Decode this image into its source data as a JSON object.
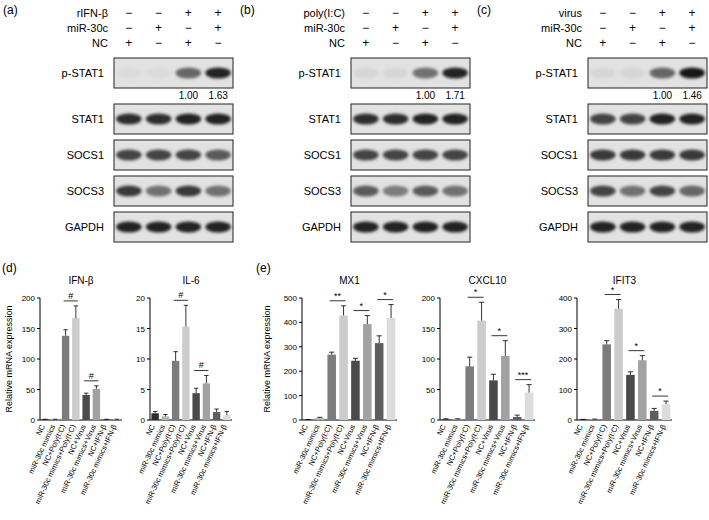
{
  "blots": [
    {
      "panel": "(a)",
      "conditions": [
        {
          "label": "rIFN-β",
          "signs": [
            "−",
            "−",
            "+",
            "+"
          ]
        },
        {
          "label": "miR-30c",
          "signs": [
            "−",
            "+",
            "−",
            "+"
          ]
        },
        {
          "label": "NC",
          "signs": [
            "+",
            "−",
            "+",
            "−"
          ]
        }
      ],
      "rows": [
        {
          "label": "p-STAT1",
          "intensity": [
            0.03,
            0.03,
            0.55,
            0.85
          ],
          "quantification": [
            null,
            null,
            "1.00",
            "1.63"
          ]
        },
        {
          "label": "STAT1",
          "intensity": [
            0.8,
            0.8,
            0.85,
            0.85
          ]
        },
        {
          "label": "SOCS1",
          "intensity": [
            0.7,
            0.7,
            0.7,
            0.6
          ]
        },
        {
          "label": "SOCS3",
          "intensity": [
            0.75,
            0.5,
            0.75,
            0.5
          ]
        },
        {
          "label": "GAPDH",
          "intensity": [
            0.85,
            0.85,
            0.85,
            0.85
          ]
        }
      ]
    },
    {
      "panel": "(b)",
      "conditions": [
        {
          "label": "poly(I:C)",
          "signs": [
            "−",
            "−",
            "+",
            "+"
          ]
        },
        {
          "label": "miR-30c",
          "signs": [
            "−",
            "+",
            "−",
            "+"
          ]
        },
        {
          "label": "NC",
          "signs": [
            "+",
            "−",
            "+",
            "−"
          ]
        }
      ],
      "rows": [
        {
          "label": "p-STAT1",
          "intensity": [
            0.05,
            0.05,
            0.5,
            0.85
          ],
          "quantification": [
            null,
            null,
            "1.00",
            "1.71"
          ]
        },
        {
          "label": "STAT1",
          "intensity": [
            0.8,
            0.8,
            0.85,
            0.85
          ]
        },
        {
          "label": "SOCS1",
          "intensity": [
            0.7,
            0.7,
            0.7,
            0.7
          ]
        },
        {
          "label": "SOCS3",
          "intensity": [
            0.6,
            0.45,
            0.6,
            0.5
          ]
        },
        {
          "label": "GAPDH",
          "intensity": [
            0.85,
            0.85,
            0.85,
            0.85
          ]
        }
      ]
    },
    {
      "panel": "(c)",
      "conditions": [
        {
          "label": "virus",
          "signs": [
            "−",
            "−",
            "+",
            "+"
          ]
        },
        {
          "label": "miR-30c",
          "signs": [
            "−",
            "+",
            "−",
            "+"
          ]
        },
        {
          "label": "NC",
          "signs": [
            "+",
            "−",
            "+",
            "−"
          ]
        }
      ],
      "rows": [
        {
          "label": "p-STAT1",
          "intensity": [
            0.05,
            0.05,
            0.55,
            0.9
          ],
          "quantification": [
            null,
            null,
            "1.00",
            "1.46"
          ]
        },
        {
          "label": "STAT1",
          "intensity": [
            0.7,
            0.7,
            0.85,
            0.85
          ]
        },
        {
          "label": "SOCS1",
          "intensity": [
            0.75,
            0.75,
            0.75,
            0.75
          ]
        },
        {
          "label": "SOCS3",
          "intensity": [
            0.7,
            0.5,
            0.7,
            0.55
          ]
        },
        {
          "label": "GAPDH",
          "intensity": [
            0.85,
            0.85,
            0.85,
            0.85
          ]
        }
      ]
    }
  ],
  "chart_data": [
    {
      "type": "bar",
      "panel": "(d)",
      "title": "IFN-β",
      "y_label": "Relative mRNA expression",
      "categories": [
        "NC",
        "miR-30c mimics",
        "NC+Poly(I:C)",
        "miR-30c mimics+Poly(I:C)",
        "NC+Virus",
        "miR-30c mimics+Virus",
        "NC+IFN-β",
        "miR-30c mimics+IFN-β"
      ],
      "values": [
        1,
        1,
        138,
        167,
        41,
        51,
        1,
        1
      ],
      "errors": [
        0.3,
        0.3,
        10,
        20,
        3,
        5,
        0.3,
        0.3
      ],
      "significance": [
        null,
        "#",
        "#",
        null
      ],
      "colors": [
        "#2e2e2e",
        "#b4b4b4",
        "#7c7c7c",
        "#cccccc",
        "#4a4a4a",
        "#a2a2a2",
        "#5e5e5e",
        "#dcdcdc"
      ],
      "ylim": [
        0,
        200
      ],
      "yticks": [
        0,
        50,
        100,
        150,
        200
      ],
      "grid": false
    },
    {
      "type": "bar",
      "title": "IL-6",
      "categories": [
        "NC",
        "miR-30c mimics",
        "NC+Poly(I:C)",
        "miR-30c mimics+Poly(I:C)",
        "NC+Virus",
        "miR-30c mimics+Virus",
        "NC+IFN-β",
        "miR-30c mimics+IFN-β"
      ],
      "values": [
        1.1,
        0.6,
        9.7,
        15.3,
        4.4,
        6.0,
        1.3,
        0.8
      ],
      "errors": [
        0.3,
        0.3,
        1.5,
        3.5,
        0.8,
        1.3,
        0.5,
        0.6
      ],
      "significance": [
        null,
        "#",
        "#",
        null
      ],
      "colors": [
        "#2e2e2e",
        "#b4b4b4",
        "#7c7c7c",
        "#cccccc",
        "#4a4a4a",
        "#a2a2a2",
        "#5e5e5e",
        "#dcdcdc"
      ],
      "ylim": [
        0,
        20
      ],
      "yticks": [
        0,
        5,
        10,
        15,
        20
      ],
      "grid": false
    },
    {
      "type": "bar",
      "panel": "(e)",
      "title": "MX1",
      "y_label": "Relative mRNA expression",
      "categories": [
        "NC",
        "miR-30c mimics",
        "NC+Poly(I:C)",
        "miR-30c mimics+Poly(I:C)",
        "NC+Virus",
        "miR-30c mimics+Virus",
        "NC+IFN-β",
        "miR-30c mimics+IFN-β"
      ],
      "values": [
        1,
        8,
        268,
        428,
        243,
        393,
        315,
        418
      ],
      "errors": [
        1,
        3,
        10,
        40,
        10,
        35,
        30,
        55
      ],
      "significance": [
        null,
        "**",
        "*",
        "*"
      ],
      "colors": [
        "#2e2e2e",
        "#b4b4b4",
        "#7c7c7c",
        "#cccccc",
        "#4a4a4a",
        "#a2a2a2",
        "#5e5e5e",
        "#dcdcdc"
      ],
      "ylim": [
        0,
        500
      ],
      "yticks": [
        0,
        100,
        200,
        300,
        400,
        500
      ],
      "grid": false
    },
    {
      "type": "bar",
      "title": "CXCL10",
      "categories": [
        "NC",
        "miR-30c mimics",
        "NC+Poly(I:C)",
        "miR-30c mimics+Poly(I:C)",
        "NC+Virus",
        "miR-30c mimics+Virus",
        "NC+IFN-β",
        "miR-30c mimics+IFN-β"
      ],
      "values": [
        1,
        1,
        88,
        163,
        65,
        105,
        5,
        45
      ],
      "errors": [
        1,
        1,
        15,
        30,
        10,
        25,
        3,
        13
      ],
      "significance": [
        null,
        "*",
        "*",
        "***"
      ],
      "colors": [
        "#2e2e2e",
        "#b4b4b4",
        "#7c7c7c",
        "#cccccc",
        "#4a4a4a",
        "#a2a2a2",
        "#5e5e5e",
        "#dcdcdc"
      ],
      "ylim": [
        0,
        200
      ],
      "yticks": [
        0,
        50,
        100,
        150,
        200
      ],
      "grid": false
    },
    {
      "type": "bar",
      "title": "IFIT3",
      "categories": [
        "NC",
        "miR-30c mimics",
        "NC+Poly(I:C)",
        "miR-30c mimics+Poly(I:C)",
        "NC+Virus",
        "miR-30c mimics+Virus",
        "NC+IFN-β",
        "miR-30c mimics+IFN-β"
      ],
      "values": [
        1,
        2,
        248,
        365,
        148,
        196,
        30,
        52
      ],
      "errors": [
        1,
        1,
        12,
        30,
        10,
        15,
        8,
        10
      ],
      "significance": [
        null,
        "*",
        "*",
        "*"
      ],
      "colors": [
        "#2e2e2e",
        "#b4b4b4",
        "#7c7c7c",
        "#cccccc",
        "#4a4a4a",
        "#a2a2a2",
        "#5e5e5e",
        "#dcdcdc"
      ],
      "ylim": [
        0,
        400
      ],
      "yticks": [
        0,
        100,
        200,
        300,
        400
      ],
      "grid": false
    }
  ]
}
